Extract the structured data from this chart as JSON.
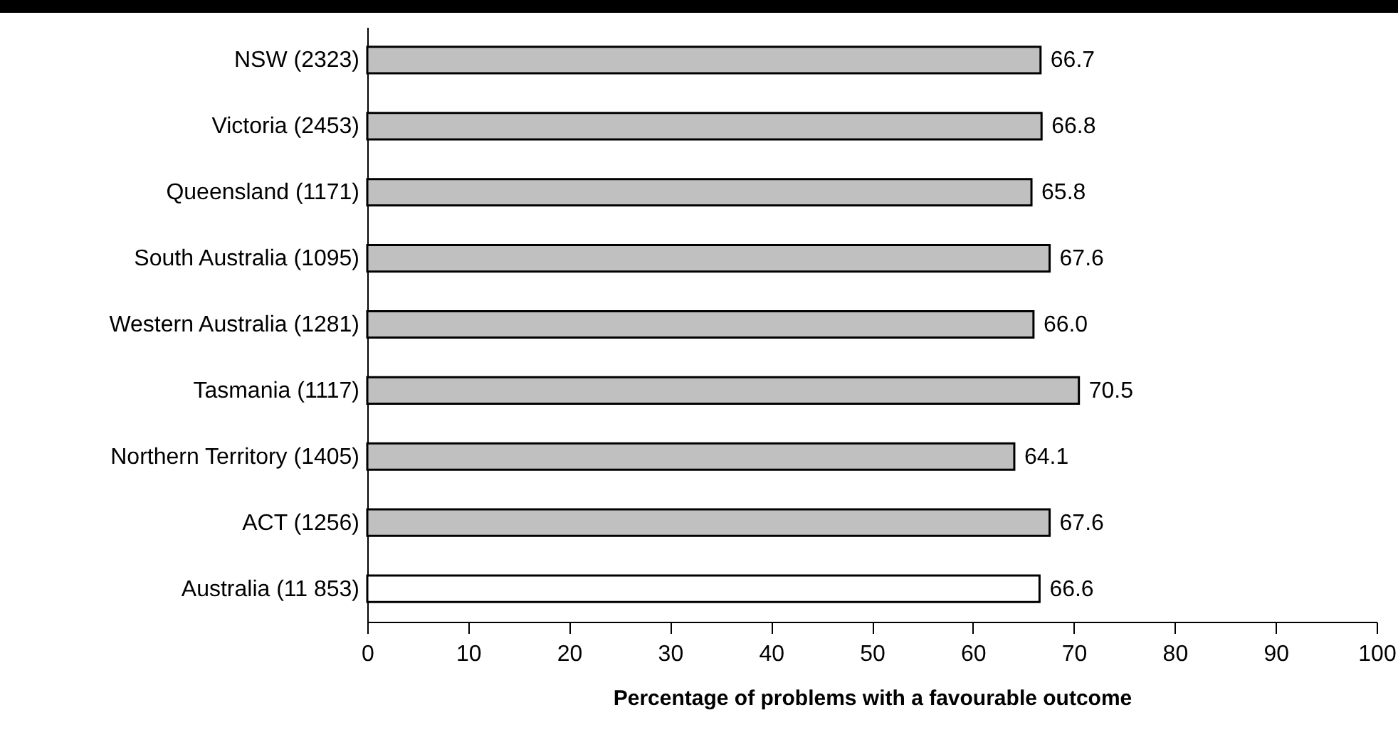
{
  "chart_data": {
    "type": "bar",
    "orientation": "horizontal",
    "xlabel": "Percentage of problems with a favourable outcome",
    "categories": [
      "NSW (2323)",
      "Victoria (2453)",
      "Queensland (1171)",
      "South Australia (1095)",
      "Western Australia (1281)",
      "Tasmania (1117)",
      "Northern Territory (1405)",
      "ACT (1256)",
      "Australia (11 853)"
    ],
    "values": [
      66.7,
      66.8,
      65.8,
      67.6,
      66.0,
      70.5,
      64.1,
      67.6,
      66.6
    ],
    "colors": [
      "#c0c0c0",
      "#c0c0c0",
      "#c0c0c0",
      "#c0c0c0",
      "#c0c0c0",
      "#c0c0c0",
      "#c0c0c0",
      "#c0c0c0",
      "#ffffff"
    ],
    "value_labels": [
      "66.7",
      "66.8",
      "65.8",
      "67.6",
      "66.0",
      "70.5",
      "64.1",
      "67.6",
      "66.6"
    ],
    "xlim": [
      0,
      100
    ],
    "xticks": [
      0,
      10,
      20,
      30,
      40,
      50,
      60,
      70,
      80,
      90,
      100
    ],
    "grid": false
  }
}
